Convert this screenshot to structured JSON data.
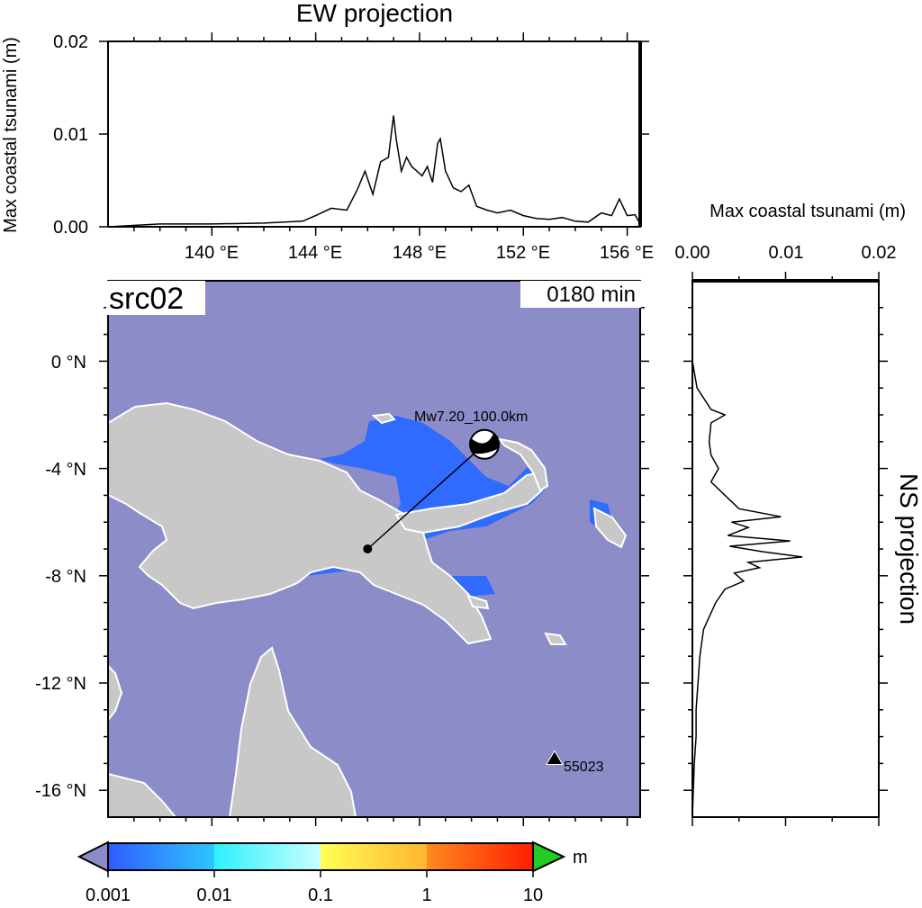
{
  "map": {
    "source_label": "src02",
    "time_label": "0180 min",
    "quake_label": "Mw7.20_100.0km",
    "gauge_label": "55023",
    "lon_ticks": [
      "140 °E",
      "144 °E",
      "148 °E",
      "152 °E",
      "156 °E"
    ],
    "lat_ticks": [
      "0 °N",
      "-4 °N",
      "-8 °N",
      "-12 °N",
      "-16 °N"
    ],
    "lon_range": [
      136.0,
      156.5
    ],
    "lat_range": [
      -17.0,
      3.0
    ],
    "epicenter": {
      "lon": 146.0,
      "lat": -7.0
    },
    "beachball": {
      "lon": 150.5,
      "lat": -3.1
    },
    "gauge": {
      "lon": 153.2,
      "lat": -14.8
    },
    "colors": {
      "ocean": "#8c8cc8",
      "land": "#c8c8c8",
      "coast": "#ffffff",
      "tsunami": "#2f6bff"
    }
  },
  "ew_projection": {
    "title": "EW projection",
    "ylabel": "Max coastal tsunami (m)",
    "yticks": [
      "0.00",
      "0.01",
      "0.02"
    ],
    "ylim": [
      0.0,
      0.02
    ]
  },
  "ns_projection": {
    "title": "NS projection",
    "xlabel": "Max coastal tsunami (m)",
    "xticks": [
      "0.00",
      "0.01",
      "0.02"
    ],
    "xlim": [
      0.0,
      0.02
    ]
  },
  "colorbar": {
    "labels": [
      "0.001",
      "0.01",
      "0.1",
      "1",
      "10"
    ],
    "unit": "m"
  },
  "chart_data": [
    {
      "type": "line",
      "name": "EW projection",
      "x": [
        136.0,
        138.0,
        140.0,
        142.0,
        143.5,
        144.0,
        144.6,
        145.2,
        145.6,
        145.9,
        146.2,
        146.5,
        146.8,
        147.0,
        147.1,
        147.3,
        147.5,
        147.7,
        147.9,
        148.1,
        148.3,
        148.5,
        148.7,
        148.8,
        149.0,
        149.3,
        149.6,
        149.9,
        150.2,
        150.6,
        151.0,
        151.5,
        152.0,
        152.5,
        153.0,
        153.5,
        154.0,
        154.5,
        155.0,
        155.4,
        155.7,
        156.0,
        156.3,
        156.5
      ],
      "y": [
        0.0,
        0.0003,
        0.0003,
        0.0004,
        0.0006,
        0.0012,
        0.002,
        0.0018,
        0.004,
        0.006,
        0.0035,
        0.007,
        0.0075,
        0.012,
        0.0095,
        0.006,
        0.0075,
        0.0065,
        0.006,
        0.0055,
        0.0065,
        0.0048,
        0.009,
        0.0095,
        0.006,
        0.0042,
        0.0038,
        0.0045,
        0.0022,
        0.0018,
        0.0015,
        0.0018,
        0.0012,
        0.0009,
        0.0008,
        0.001,
        0.0006,
        0.0005,
        0.0015,
        0.0012,
        0.003,
        0.0012,
        0.0013,
        0.0003
      ]
    },
    {
      "type": "line",
      "name": "NS projection",
      "lat": [
        3.0,
        0.0,
        -1.0,
        -1.8,
        -2.0,
        -2.3,
        -3.0,
        -3.5,
        -4.0,
        -4.5,
        -5.0,
        -5.5,
        -5.8,
        -6.0,
        -6.2,
        -6.5,
        -6.7,
        -6.9,
        -7.1,
        -7.3,
        -7.5,
        -7.7,
        -7.9,
        -8.2,
        -8.5,
        -9.0,
        -10.0,
        -11.0,
        -12.0,
        -13.0,
        -14.0,
        -15.0,
        -16.0,
        -17.0
      ],
      "value": [
        0.0,
        0.0,
        0.0005,
        0.002,
        0.0035,
        0.002,
        0.0018,
        0.002,
        0.0028,
        0.002,
        0.0035,
        0.005,
        0.0095,
        0.0042,
        0.006,
        0.0038,
        0.0105,
        0.004,
        0.0075,
        0.0118,
        0.006,
        0.0072,
        0.0045,
        0.0055,
        0.0035,
        0.0025,
        0.0012,
        0.0008,
        0.0006,
        0.0004,
        0.0004,
        0.0002,
        0.0001,
        0.0
      ]
    }
  ]
}
